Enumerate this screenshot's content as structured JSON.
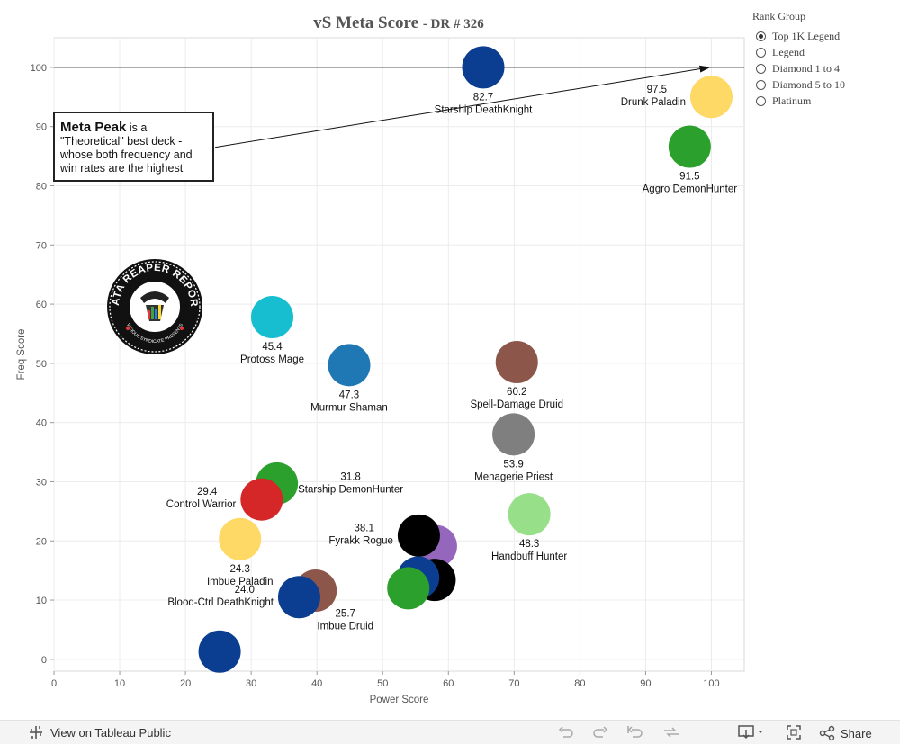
{
  "title": {
    "main": "vS  Meta  Score",
    "sub": "-  DR  #  326"
  },
  "legend": {
    "title": "Rank Group",
    "options": [
      {
        "label": "Top 1K Legend",
        "selected": true
      },
      {
        "label": "Legend",
        "selected": false
      },
      {
        "label": "Diamond 1 to 4",
        "selected": false
      },
      {
        "label": "Diamond 5 to 10",
        "selected": false
      },
      {
        "label": "Platinum",
        "selected": false
      }
    ]
  },
  "annotation": {
    "bold": "Meta Peak",
    "line1_rest": "is a",
    "line2": "\"Theoretical\" best deck -",
    "line3": "whose both frequency and",
    "line4": "win rates are the highest"
  },
  "logo": {
    "text": "DATA REAPER REPORT",
    "subtext": "VICIOUS SYNDICATE PRESENTS"
  },
  "chart_data": {
    "type": "scatter",
    "title": "vS Meta Score - DR # 326",
    "xlabel": "Power Score",
    "ylabel": "Freq Score",
    "xlim": [
      0,
      105
    ],
    "ylim": [
      -2,
      105
    ],
    "xticks": [
      0,
      10,
      20,
      30,
      40,
      50,
      60,
      70,
      80,
      90,
      100
    ],
    "yticks": [
      0,
      10,
      20,
      30,
      40,
      50,
      60,
      70,
      80,
      90,
      100
    ],
    "grid": true,
    "reference_line": {
      "y": 100
    },
    "arrow": {
      "from": [
        24.5,
        86.5
      ],
      "to": [
        100,
        100
      ]
    },
    "points": [
      {
        "deck": "Starship DeathKnight",
        "score": "82.7",
        "x": 65.3,
        "y": 100,
        "color": "#0b3d91",
        "label_pos": "below"
      },
      {
        "deck": "Drunk Paladin",
        "score": "97.5",
        "x": 100,
        "y": 95,
        "color": "#ffd966",
        "label_pos": "left"
      },
      {
        "deck": "Aggro DemonHunter",
        "score": "91.5",
        "x": 96.7,
        "y": 86.6,
        "color": "#2ca02c",
        "label_pos": "below"
      },
      {
        "deck": "Protoss Mage",
        "score": "45.4",
        "x": 33.2,
        "y": 57.8,
        "color": "#17becf",
        "label_pos": "below"
      },
      {
        "deck": "Murmur Shaman",
        "score": "47.3",
        "x": 44.9,
        "y": 49.7,
        "color": "#1f77b4",
        "label_pos": "below"
      },
      {
        "deck": "Spell-Damage Druid",
        "score": "60.2",
        "x": 70.4,
        "y": 50.2,
        "color": "#8c564b",
        "label_pos": "below"
      },
      {
        "deck": "Menagerie Priest",
        "score": "53.9",
        "x": 69.9,
        "y": 38.0,
        "color": "#7f7f7f",
        "label_pos": "below"
      },
      {
        "deck": "Starship DemonHunter",
        "score": "31.8",
        "x": 33.9,
        "y": 29.7,
        "color": "#2ca02c",
        "label_pos": "right"
      },
      {
        "deck": "Control Warrior",
        "score": "29.4",
        "x": 31.6,
        "y": 27.0,
        "color": "#d62728",
        "label_pos": "left"
      },
      {
        "deck": "Handbuff Hunter",
        "score": "48.3",
        "x": 72.3,
        "y": 24.5,
        "color": "#98df8a",
        "label_pos": "below"
      },
      {
        "deck": "Imbue Paladin",
        "score": "24.3",
        "x": 28.3,
        "y": 20.3,
        "color": "#ffd966",
        "label_pos": "below"
      },
      {
        "deck": "",
        "score": "",
        "x": 58.1,
        "y": 19.1,
        "color": "#9467bd",
        "label_pos": "none"
      },
      {
        "deck": "Fyrakk Rogue",
        "score": "38.1",
        "x": 55.5,
        "y": 20.9,
        "color": "#000000",
        "label_pos": "left"
      },
      {
        "deck": "",
        "score": "",
        "x": 57.9,
        "y": 13.4,
        "color": "#000000",
        "label_pos": "none"
      },
      {
        "deck": "",
        "score": "",
        "x": 55.4,
        "y": 13.8,
        "color": "#0b3d91",
        "label_pos": "none"
      },
      {
        "deck": "",
        "score": "",
        "x": 53.9,
        "y": 12.0,
        "color": "#2ca02c",
        "label_pos": "none"
      },
      {
        "deck": "Imbue Druid",
        "score": "25.7",
        "x": 39.8,
        "y": 11.6,
        "color": "#8c564b",
        "label_pos": "below-right"
      },
      {
        "deck": "Blood-Ctrl DeathKnight",
        "score": "24.0",
        "x": 37.3,
        "y": 10.5,
        "color": "#0b3d91",
        "label_pos": "left"
      },
      {
        "deck": "",
        "score": "",
        "x": 25.2,
        "y": 1.3,
        "color": "#0b3d91",
        "label_pos": "none"
      }
    ]
  },
  "footer": {
    "view_label": "View on Tableau Public",
    "share_label": "Share"
  }
}
